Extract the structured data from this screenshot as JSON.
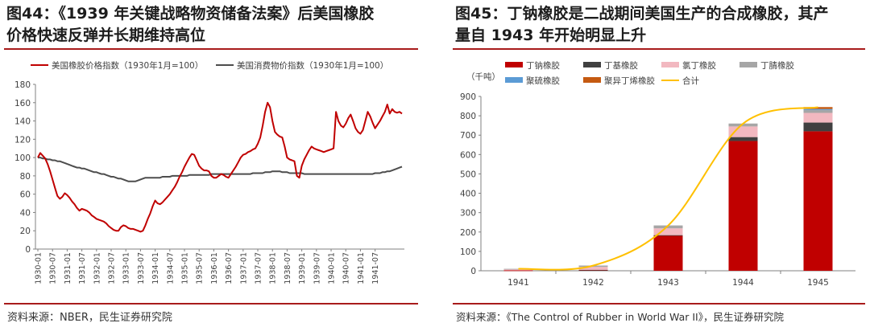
{
  "left": {
    "title_line1": "图44：《1939 年关键战略物资储备法案》后美国橡胶",
    "title_line2": "价格快速反弹并长期维持高位",
    "source": "资料来源：NBER，民生证券研究院"
  },
  "right": {
    "title_line1": "图45：丁钠橡胶是二战期间美国生产的合成橡胶，其产",
    "title_line2": "量自 1943 年开始明显上升",
    "source": "资料来源：《The Control of Rubber in World War II》，民生证券研究院"
  },
  "chart_data": [
    {
      "type": "line",
      "legend_position": "top-left",
      "grid": false,
      "ylim": [
        0,
        180
      ],
      "yticks": [
        0,
        20,
        40,
        60,
        80,
        100,
        120,
        140,
        160,
        180
      ],
      "xticks": [
        "1930-01",
        "1930-07",
        "1931-01",
        "1931-07",
        "1932-01",
        "1932-07",
        "1933-01",
        "1933-07",
        "1934-01",
        "1934-07",
        "1935-01",
        "1935-07",
        "1936-01",
        "1936-07",
        "1937-01",
        "1937-07",
        "1938-01",
        "1938-07",
        "1939-01",
        "1939-07",
        "1940-01",
        "1940-07",
        "1941-01",
        "1941-07"
      ],
      "series": [
        {
          "name": "美国橡胶价格指数（1930年1月=100）",
          "color": "#c00000",
          "values": [
            100,
            105,
            102,
            99,
            93,
            85,
            76,
            67,
            58,
            55,
            57,
            61,
            59,
            56,
            52,
            49,
            45,
            42,
            44,
            43,
            42,
            40,
            37,
            35,
            33,
            32,
            31,
            30,
            28,
            25,
            23,
            21,
            20,
            20,
            24,
            26,
            25,
            23,
            22,
            22,
            21,
            20,
            19,
            20,
            26,
            33,
            39,
            47,
            53,
            50,
            49,
            51,
            54,
            57,
            60,
            64,
            68,
            73,
            79,
            84,
            90,
            95,
            100,
            104,
            103,
            97,
            91,
            88,
            86,
            86,
            85,
            80,
            78,
            78,
            80,
            82,
            81,
            79,
            78,
            82,
            86,
            90,
            95,
            100,
            103,
            104,
            106,
            107,
            109,
            110,
            115,
            122,
            135,
            150,
            160,
            155,
            140,
            128,
            125,
            123,
            122,
            112,
            100,
            98,
            97,
            96,
            80,
            78,
            91,
            98,
            103,
            108,
            112,
            110,
            109,
            108,
            107,
            106,
            107,
            108,
            109,
            110,
            150,
            140,
            135,
            133,
            137,
            143,
            147,
            140,
            132,
            128,
            126,
            130,
            140,
            150,
            145,
            138,
            132,
            136,
            140,
            145,
            150,
            158,
            148,
            153,
            150,
            149,
            150,
            148
          ]
        },
        {
          "name": "美国消费物价指数（1930年1月=100）",
          "color": "#4d4d4d",
          "values": [
            100,
            100,
            99,
            99,
            98,
            98,
            97,
            97,
            96,
            96,
            95,
            94,
            93,
            92,
            91,
            90,
            89,
            89,
            88,
            88,
            87,
            86,
            85,
            84,
            84,
            83,
            82,
            82,
            81,
            80,
            79,
            79,
            78,
            77,
            77,
            76,
            75,
            74,
            74,
            74,
            74,
            75,
            76,
            77,
            78,
            78,
            78,
            78,
            78,
            78,
            78,
            79,
            79,
            79,
            79,
            80,
            80,
            80,
            80,
            80,
            80,
            80,
            81,
            81,
            81,
            81,
            81,
            81,
            81,
            81,
            81,
            82,
            82,
            82,
            82,
            82,
            82,
            82,
            82,
            82,
            82,
            82,
            82,
            82,
            82,
            82,
            82,
            82,
            83,
            83,
            83,
            83,
            83,
            84,
            84,
            84,
            85,
            85,
            85,
            85,
            84,
            84,
            84,
            83,
            83,
            83,
            83,
            83,
            83,
            82,
            82,
            82,
            82,
            82,
            82,
            82,
            82,
            82,
            82,
            82,
            82,
            82,
            82,
            82,
            82,
            82,
            82,
            82,
            82,
            82,
            82,
            82,
            82,
            82,
            82,
            82,
            82,
            82,
            83,
            83,
            83,
            84,
            84,
            85,
            85,
            86,
            87,
            88,
            89,
            90
          ]
        }
      ]
    },
    {
      "type": "bar",
      "stacked": true,
      "legend_position": "top",
      "grid": false,
      "unit_label": "（千吨）",
      "categories": [
        "1941",
        "1942",
        "1943",
        "1944",
        "1945"
      ],
      "ylim": [
        0,
        900
      ],
      "yticks": [
        0,
        100,
        200,
        300,
        400,
        500,
        600,
        700,
        800,
        900
      ],
      "series": [
        {
          "name": "丁钠橡胶",
          "color": "#c00000",
          "values": [
            2,
            4,
            182,
            670,
            720
          ]
        },
        {
          "name": "丁基橡胶",
          "color": "#404040",
          "values": [
            0,
            1,
            2,
            20,
            45
          ]
        },
        {
          "name": "氯丁橡胶",
          "color": "#f2b8c0",
          "values": [
            5,
            15,
            35,
            55,
            50
          ]
        },
        {
          "name": "丁腈橡胶",
          "color": "#a6a6a6",
          "values": [
            3,
            7,
            15,
            15,
            15
          ]
        },
        {
          "name": "聚硫橡胶",
          "color": "#5b9bd5",
          "values": [
            0,
            0,
            0,
            0,
            5
          ]
        },
        {
          "name": "聚异丁烯橡胶",
          "color": "#c55a11",
          "values": [
            0,
            0,
            0,
            0,
            10
          ]
        }
      ],
      "total": {
        "name": "合计",
        "color": "#ffc000",
        "values": [
          10,
          27,
          234,
          760,
          845
        ]
      }
    }
  ]
}
